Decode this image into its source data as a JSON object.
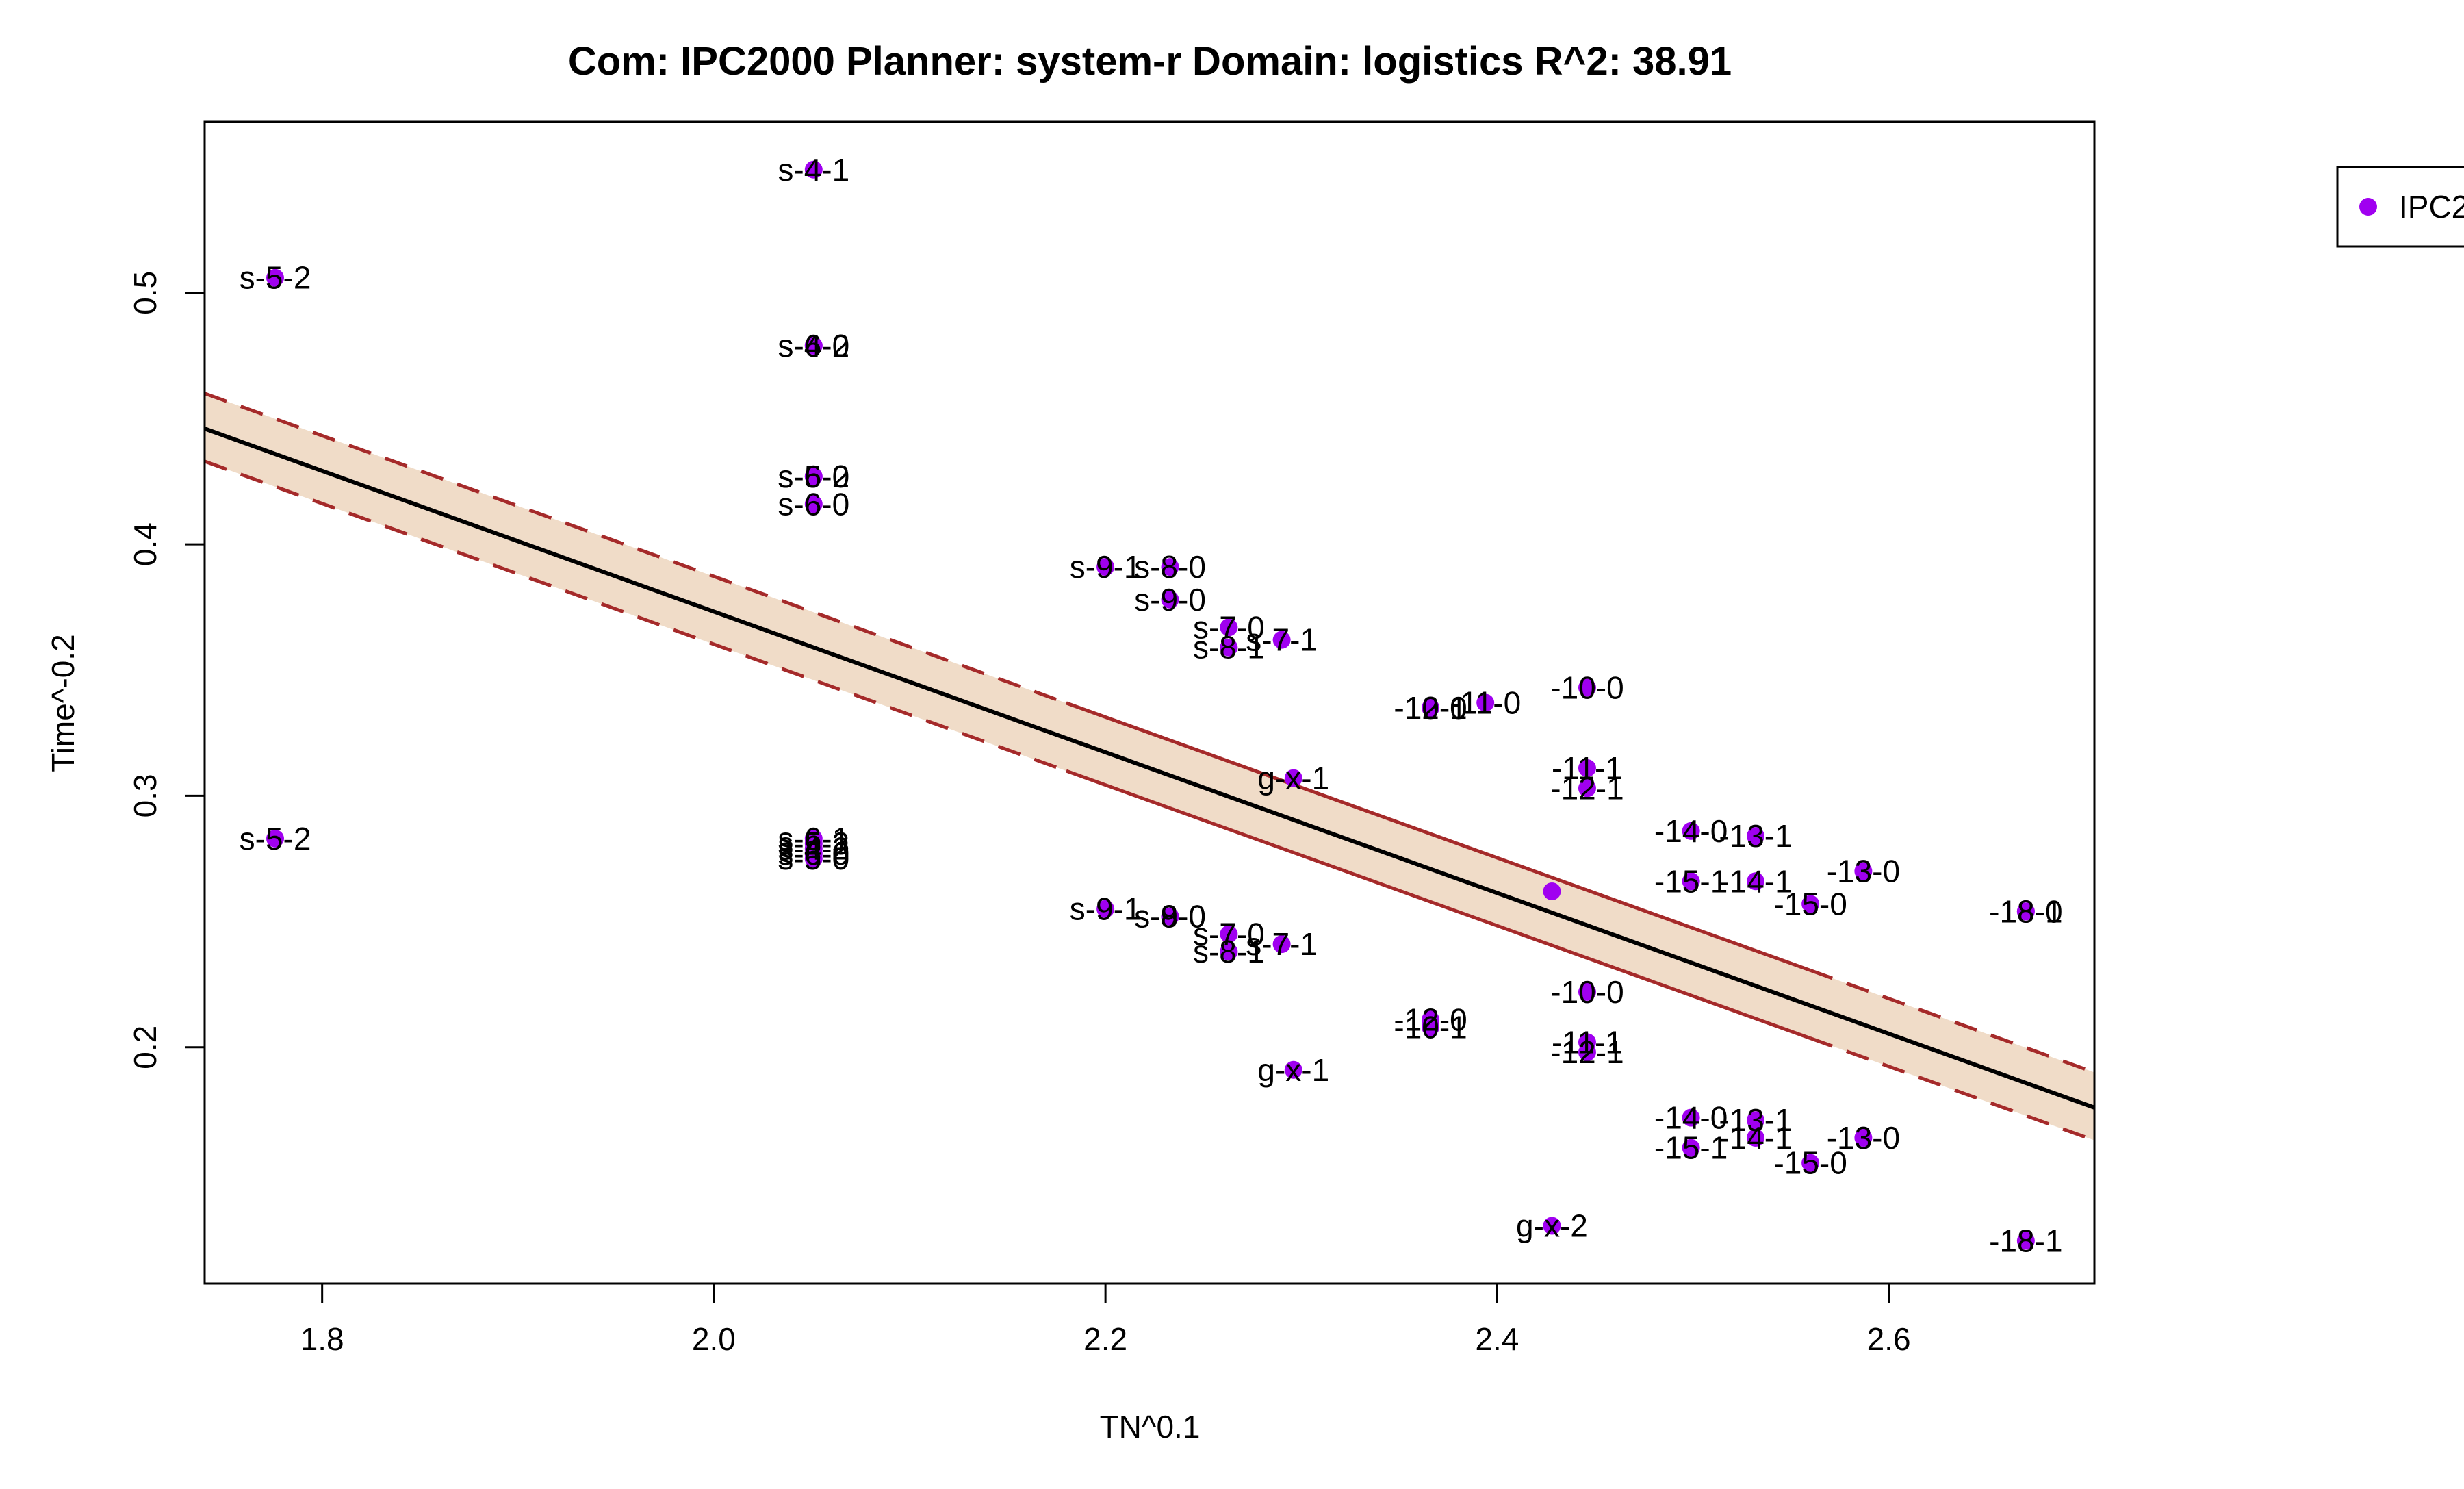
{
  "chart_data": {
    "type": "scatter",
    "title": "Com: IPC2000 Planner: system-r Domain: logistics R^2: 38.91",
    "xlabel": "TN^0.1",
    "ylabel": "Time^-0.2",
    "xlim": [
      1.74,
      2.705
    ],
    "ylim": [
      0.106,
      0.568
    ],
    "xticks": [
      "1.8",
      "2.0",
      "2.2",
      "2.4",
      "2.6"
    ],
    "yticks": [
      "0.2",
      "0.3",
      "0.4",
      "0.5"
    ],
    "grid": false,
    "legend": {
      "position": "top-right",
      "entries": [
        "IPC2"
      ]
    },
    "colors": {
      "points": "#a000f0",
      "band": "#f0dcc8",
      "band_edge": "#a52a2a",
      "fit": "#000000"
    },
    "fit_line": {
      "x": [
        1.74,
        2.705
      ],
      "y": [
        0.446,
        0.176
      ]
    },
    "confidence_band": {
      "x": [
        1.74,
        2.705
      ],
      "upper": [
        0.46,
        0.19
      ],
      "lower": [
        0.433,
        0.163
      ]
    },
    "points": [
      {
        "x": 1.776,
        "y": 0.506,
        "label": "s-5-2"
      },
      {
        "x": 1.776,
        "y": 0.283,
        "label": "s-5-2"
      },
      {
        "x": 2.051,
        "y": 0.549,
        "label": "s-4-1"
      },
      {
        "x": 2.051,
        "y": 0.479,
        "label": "s-4-0"
      },
      {
        "x": 2.051,
        "y": 0.479,
        "label": "s-6-2"
      },
      {
        "x": 2.051,
        "y": 0.427,
        "label": "s-5-0"
      },
      {
        "x": 2.051,
        "y": 0.427,
        "label": "s-6-2"
      },
      {
        "x": 2.051,
        "y": 0.416,
        "label": "s-6-0"
      },
      {
        "x": 2.051,
        "y": 0.283,
        "label": "s-6-1"
      },
      {
        "x": 2.051,
        "y": 0.281,
        "label": "s-5-3"
      },
      {
        "x": 2.051,
        "y": 0.279,
        "label": "s-4-2"
      },
      {
        "x": 2.051,
        "y": 0.277,
        "label": "s-6-0"
      },
      {
        "x": 2.051,
        "y": 0.275,
        "label": "s-5-0"
      },
      {
        "x": 2.2,
        "y": 0.391,
        "label": "s-9-1"
      },
      {
        "x": 2.233,
        "y": 0.391,
        "label": "s-8-0"
      },
      {
        "x": 2.233,
        "y": 0.378,
        "label": "s-9-0"
      },
      {
        "x": 2.263,
        "y": 0.367,
        "label": "s-7-0"
      },
      {
        "x": 2.263,
        "y": 0.359,
        "label": "s-8-1"
      },
      {
        "x": 2.29,
        "y": 0.362,
        "label": "s-7-1"
      },
      {
        "x": 2.296,
        "y": 0.307,
        "label": "g-x-1"
      },
      {
        "x": 2.366,
        "y": 0.335,
        "label": "-10-1"
      },
      {
        "x": 2.366,
        "y": 0.335,
        "label": "-12-0"
      },
      {
        "x": 2.394,
        "y": 0.337,
        "label": "-11-0"
      },
      {
        "x": 2.446,
        "y": 0.343,
        "label": "-10-0"
      },
      {
        "x": 2.446,
        "y": 0.311,
        "label": "-11-1"
      },
      {
        "x": 2.446,
        "y": 0.303,
        "label": "-12-1"
      },
      {
        "x": 2.499,
        "y": 0.286,
        "label": "-14-0"
      },
      {
        "x": 2.532,
        "y": 0.284,
        "label": "-13-1"
      },
      {
        "x": 2.499,
        "y": 0.266,
        "label": "-15-1"
      },
      {
        "x": 2.532,
        "y": 0.266,
        "label": "-14-1"
      },
      {
        "x": 2.587,
        "y": 0.27,
        "label": "-13-0"
      },
      {
        "x": 2.56,
        "y": 0.257,
        "label": "-15-0"
      },
      {
        "x": 2.428,
        "y": 0.262,
        "label": ""
      },
      {
        "x": 2.67,
        "y": 0.254,
        "label": "-18-0"
      },
      {
        "x": 2.67,
        "y": 0.254,
        "label": "-18-1"
      },
      {
        "x": 2.2,
        "y": 0.255,
        "label": "s-9-1"
      },
      {
        "x": 2.233,
        "y": 0.252,
        "label": "s-9-0"
      },
      {
        "x": 2.233,
        "y": 0.252,
        "label": "s-8-0"
      },
      {
        "x": 2.263,
        "y": 0.245,
        "label": "s-7-0"
      },
      {
        "x": 2.263,
        "y": 0.238,
        "label": "s-8-1"
      },
      {
        "x": 2.29,
        "y": 0.241,
        "label": "s-7-1"
      },
      {
        "x": 2.366,
        "y": 0.211,
        "label": "-12-0"
      },
      {
        "x": 2.366,
        "y": 0.208,
        "label": "-10-1"
      },
      {
        "x": 2.446,
        "y": 0.222,
        "label": "-10-0"
      },
      {
        "x": 2.446,
        "y": 0.202,
        "label": "-11-1"
      },
      {
        "x": 2.446,
        "y": 0.198,
        "label": "-12-1"
      },
      {
        "x": 2.296,
        "y": 0.191,
        "label": "g-x-1"
      },
      {
        "x": 2.499,
        "y": 0.172,
        "label": "-14-0"
      },
      {
        "x": 2.532,
        "y": 0.171,
        "label": "-13-1"
      },
      {
        "x": 2.532,
        "y": 0.164,
        "label": "-14-1"
      },
      {
        "x": 2.499,
        "y": 0.16,
        "label": "-15-1"
      },
      {
        "x": 2.587,
        "y": 0.164,
        "label": "-13-0"
      },
      {
        "x": 2.56,
        "y": 0.154,
        "label": "-15-0"
      },
      {
        "x": 2.428,
        "y": 0.129,
        "label": "g-x-2"
      },
      {
        "x": 2.67,
        "y": 0.123,
        "label": "-18-1"
      }
    ]
  }
}
